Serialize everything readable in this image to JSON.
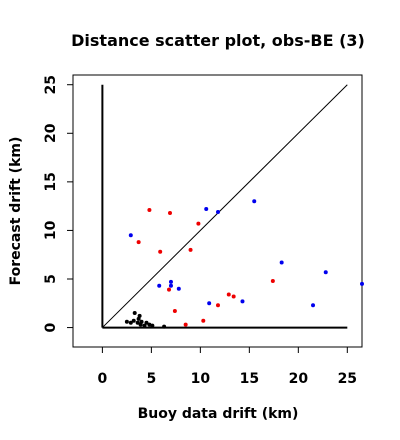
{
  "chart_data": {
    "type": "scatter",
    "title": "Distance scatter plot, obs-BE (3)",
    "xlabel": "Buoy data drift (km)",
    "ylabel": "Forecast drift (km)",
    "xlim": [
      -3,
      26.5
    ],
    "ylim": [
      -2,
      26
    ],
    "xticks": [
      "0",
      "5",
      "10",
      "15",
      "20",
      "25"
    ],
    "yticks": [
      "0",
      "5",
      "10",
      "15",
      "20",
      "25"
    ],
    "grid": false,
    "legend": "none",
    "reference_lines": [
      {
        "kind": "diagonal",
        "from": [
          0,
          0
        ],
        "to": [
          25,
          25
        ]
      },
      {
        "kind": "y-axis-line",
        "from": [
          0,
          0
        ],
        "to": [
          0,
          25
        ]
      },
      {
        "kind": "x-axis-line",
        "from": [
          0,
          0
        ],
        "to": [
          25,
          0
        ]
      }
    ],
    "series": [
      {
        "color": "#000000",
        "points": [
          [
            2.5,
            0.6
          ],
          [
            2.9,
            0.5
          ],
          [
            3.2,
            0.7
          ],
          [
            3.3,
            1.5
          ],
          [
            3.6,
            0.5
          ],
          [
            3.7,
            0.9
          ],
          [
            3.8,
            1.2
          ],
          [
            3.9,
            0.3
          ],
          [
            4.0,
            0.6
          ],
          [
            4.3,
            0.2
          ],
          [
            4.5,
            0.5
          ],
          [
            4.8,
            0.3
          ],
          [
            5.1,
            0.2
          ],
          [
            6.3,
            0.1
          ]
        ]
      },
      {
        "color": "#0000ee",
        "points": [
          [
            2.9,
            9.5
          ],
          [
            5.8,
            4.3
          ],
          [
            7.0,
            4.7
          ],
          [
            7.0,
            4.3
          ],
          [
            7.8,
            4.0
          ],
          [
            10.6,
            12.2
          ],
          [
            10.9,
            2.5
          ],
          [
            11.8,
            11.9
          ],
          [
            14.3,
            2.7
          ],
          [
            15.5,
            13.0
          ],
          [
            18.3,
            6.7
          ],
          [
            21.5,
            2.3
          ],
          [
            22.8,
            5.7
          ],
          [
            26.5,
            4.5
          ]
        ]
      },
      {
        "color": "#ee0000",
        "points": [
          [
            3.7,
            8.8
          ],
          [
            4.8,
            12.1
          ],
          [
            5.9,
            7.8
          ],
          [
            6.8,
            3.9
          ],
          [
            6.9,
            11.8
          ],
          [
            7.4,
            1.7
          ],
          [
            8.5,
            0.3
          ],
          [
            9.0,
            8.0
          ],
          [
            9.8,
            10.7
          ],
          [
            10.3,
            0.7
          ],
          [
            11.8,
            2.3
          ],
          [
            12.9,
            3.4
          ],
          [
            13.4,
            3.2
          ],
          [
            17.4,
            4.8
          ]
        ]
      }
    ]
  }
}
